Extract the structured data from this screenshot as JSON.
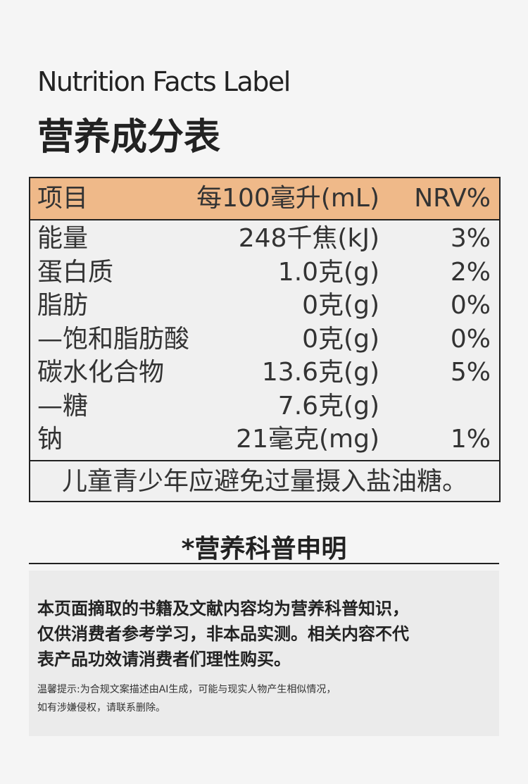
{
  "header": {
    "title_en": "Nutrition Facts Label",
    "title_zh": "营养成分表"
  },
  "table": {
    "header": [
      "项目",
      "每100毫升(mL)",
      "NRV%"
    ],
    "rows": [
      [
        "能量",
        "248千焦(kJ)",
        "3%"
      ],
      [
        "蛋白质",
        "1.0克(g)",
        "2%"
      ],
      [
        "脂肪",
        "0克(g)",
        "0%"
      ],
      [
        "—饱和脂肪酸",
        "0克(g)",
        "0%"
      ],
      [
        "碳水化合物",
        "13.6克(g)",
        "5%"
      ],
      [
        "—糖",
        "7.6克(g)"
      ],
      [
        "钠",
        "21毫克(mg)",
        "1%"
      ]
    ],
    "footer": "儿童青少年应避免过量摄入盐油糖。"
  },
  "disclaimer": {
    "title": "*营养科普申明",
    "body": [
      "本页面摘取的书籍及文献内容均为营养科普知识，",
      "仅供消费者参考学习，非本品实测。相关内容不代",
      "表产品功效请消费者们理性购买。"
    ],
    "note": [
      "温馨提示:为合规文案描述由AI生成，可能与现实人物产生相似情况，",
      "如有涉嫌侵权，请联系删除。"
    ]
  }
}
